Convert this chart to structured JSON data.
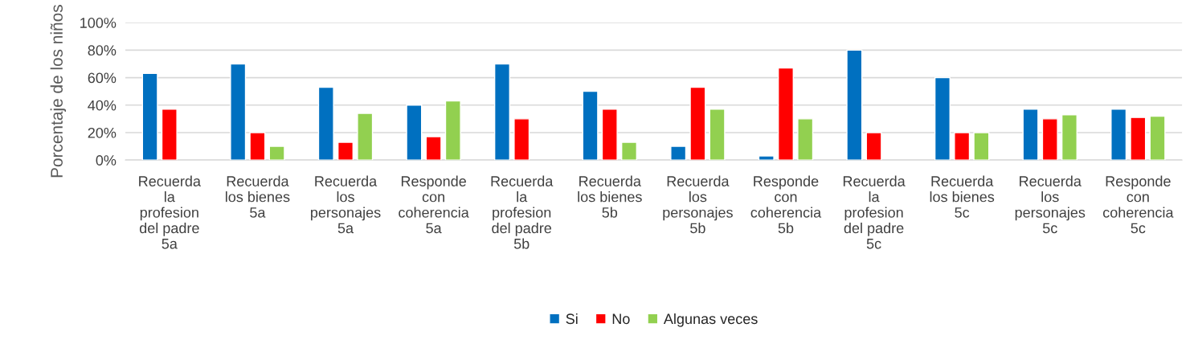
{
  "chart_data": {
    "type": "bar",
    "ylabel": "Porcentaje de los niños",
    "categories": [
      "Recuerda\nla\nprofesion\ndel padre\n5a",
      "Recuerda\nlos bienes\n5a",
      "Recuerda\nlos\npersonajes\n5a",
      "Responde\ncon\ncoherencia\n5a",
      "Recuerda\nla\nprofesion\ndel padre\n5b",
      "Recuerda\nlos bienes\n5b",
      "Recuerda\nlos\npersonajes\n5b",
      "Responde\ncon\ncoherencia\n5b",
      "Recuerda\nla\nprofesion\ndel padre\n5c",
      "Recuerda\nlos bienes\n5c",
      "Recuerda\nlos\npersonajes\n5c",
      "Responde\ncon\ncoherencia\n5c"
    ],
    "series": [
      {
        "name": "Si",
        "color": "#0070c0",
        "values": [
          63,
          70,
          53,
          40,
          70,
          50,
          10,
          3,
          80,
          60,
          37,
          37
        ]
      },
      {
        "name": "No",
        "color": "#ff0000",
        "values": [
          37,
          20,
          13,
          17,
          30,
          37,
          53,
          67,
          20,
          20,
          30,
          31
        ]
      },
      {
        "name": "Algunas veces",
        "color": "#92d050",
        "values": [
          null,
          10,
          34,
          43,
          null,
          13,
          37,
          30,
          null,
          20,
          33,
          32
        ]
      }
    ],
    "ylim": [
      0,
      100
    ],
    "yticks": [
      {
        "value": 0,
        "label": "0%"
      },
      {
        "value": 20,
        "label": "20%"
      },
      {
        "value": 40,
        "label": "40%"
      },
      {
        "value": 60,
        "label": "60%"
      },
      {
        "value": 80,
        "label": "80%"
      },
      {
        "value": 100,
        "label": "100%"
      }
    ],
    "grid": "y",
    "legend": "bottom"
  }
}
